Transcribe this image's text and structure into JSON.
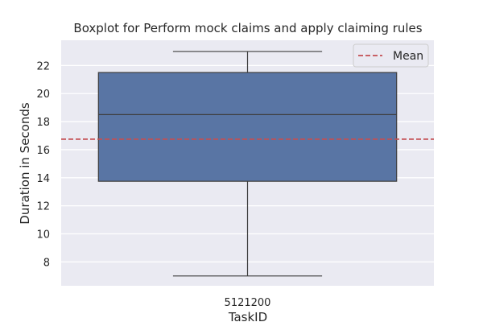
{
  "chart_data": {
    "type": "box",
    "title": "Boxplot for Perform mock claims and apply claiming rules",
    "xlabel": "TaskID",
    "ylabel": "Duration in Seconds",
    "categories": [
      "5121200"
    ],
    "ylim": [
      6.3,
      23.8
    ],
    "yticks": [
      8,
      10,
      12,
      14,
      16,
      18,
      20,
      22
    ],
    "grid": true,
    "legend_position": "top-right",
    "boxes": [
      {
        "category": "5121200",
        "min": 7.0,
        "q1": 13.75,
        "median": 18.5,
        "q3": 21.5,
        "max": 23.0
      }
    ],
    "mean": {
      "label": "Mean",
      "value": 16.75
    },
    "colors": {
      "background": "#eaeaf2",
      "grid": "#ffffff",
      "box_fill": "#5975a4",
      "box_edge": "#3d3d3d",
      "mean_line": "#c44e52"
    }
  }
}
